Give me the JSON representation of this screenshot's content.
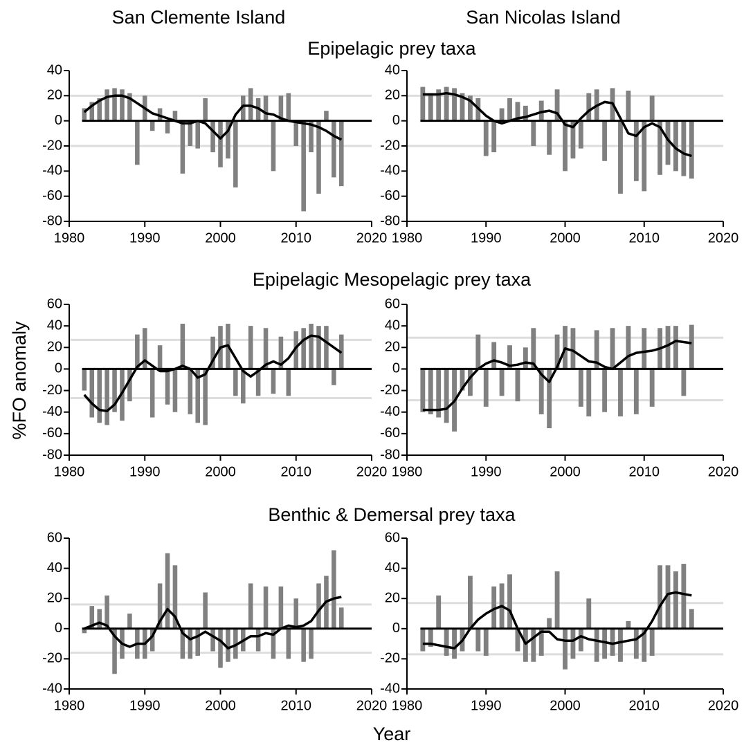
{
  "columns": [
    "San Clemente Island",
    "San Nicolas Island"
  ],
  "rows": [
    "Epipelagic prey taxa",
    "Epipelagic Mesopelagic prey taxa",
    "Benthic & Demersal prey taxa"
  ],
  "y_label": "%FO anomaly",
  "x_label": "Year",
  "chart_data": [
    {
      "type": "bar-line",
      "bar_color": "#808080",
      "line_color": "#000000",
      "x": [
        1982,
        1983,
        1984,
        1985,
        1986,
        1987,
        1988,
        1989,
        1990,
        1991,
        1992,
        1993,
        1994,
        1995,
        1996,
        1997,
        1998,
        1999,
        2000,
        2001,
        2002,
        2003,
        2004,
        2005,
        2006,
        2007,
        2008,
        2009,
        2010,
        2011,
        2012,
        2013,
        2014,
        2015,
        2016
      ],
      "values": [
        10,
        15,
        18,
        25,
        26,
        25,
        22,
        -35,
        20,
        -8,
        10,
        -10,
        8,
        -42,
        -20,
        -22,
        18,
        -25,
        -37,
        -30,
        -53,
        20,
        26,
        18,
        20,
        -40,
        20,
        22,
        -20,
        -72,
        -25,
        -58,
        8,
        -45,
        -52
      ],
      "smooth": [
        7,
        12,
        16,
        19,
        20,
        20,
        18,
        14,
        10,
        6,
        4,
        2,
        0,
        -2,
        -2,
        0,
        -2,
        -8,
        -14,
        -8,
        5,
        12,
        12,
        10,
        6,
        5,
        2,
        0,
        -1,
        -2,
        -3,
        -5,
        -8,
        -12,
        -15
      ],
      "reference_lines": [
        20,
        -20
      ],
      "xlim": [
        1980,
        2020
      ],
      "xticks": [
        1980,
        1990,
        2000,
        2010,
        2020
      ],
      "ylim": [
        -80,
        40
      ],
      "yticks": [
        -80,
        -60,
        -40,
        -20,
        0,
        20,
        40
      ]
    },
    {
      "type": "bar-line",
      "bar_color": "#808080",
      "line_color": "#000000",
      "x": [
        1982,
        1983,
        1984,
        1985,
        1986,
        1987,
        1988,
        1989,
        1990,
        1991,
        1992,
        1993,
        1994,
        1995,
        1996,
        1997,
        1998,
        1999,
        2000,
        2001,
        2002,
        2003,
        2004,
        2005,
        2006,
        2007,
        2008,
        2009,
        2010,
        2011,
        2012,
        2013,
        2014,
        2015,
        2016
      ],
      "values": [
        27,
        22,
        25,
        27,
        26,
        22,
        20,
        18,
        -28,
        -25,
        10,
        18,
        15,
        12,
        -20,
        16,
        -27,
        25,
        -40,
        -30,
        -22,
        22,
        25,
        -32,
        26,
        -58,
        24,
        -48,
        -56,
        20,
        -43,
        -35,
        -40,
        -44,
        -46
      ],
      "smooth": [
        21,
        21,
        21,
        22,
        21,
        19,
        16,
        10,
        4,
        0,
        -2,
        0,
        2,
        3,
        5,
        7,
        8,
        6,
        -3,
        -5,
        2,
        8,
        12,
        15,
        14,
        2,
        -10,
        -12,
        -5,
        -2,
        -5,
        -15,
        -22,
        -26,
        -28
      ],
      "reference_lines": [
        20,
        -20
      ],
      "xlim": [
        1980,
        2020
      ],
      "xticks": [
        1980,
        1990,
        2000,
        2010,
        2020
      ],
      "ylim": [
        -80,
        40
      ],
      "yticks": [
        -80,
        -60,
        -40,
        -20,
        0,
        20,
        40
      ]
    },
    {
      "type": "bar-line",
      "bar_color": "#808080",
      "line_color": "#000000",
      "x": [
        1982,
        1983,
        1984,
        1985,
        1986,
        1987,
        1988,
        1989,
        1990,
        1991,
        1992,
        1993,
        1994,
        1995,
        1996,
        1997,
        1998,
        1999,
        2000,
        2001,
        2002,
        2003,
        2004,
        2005,
        2006,
        2007,
        2008,
        2009,
        2010,
        2011,
        2012,
        2013,
        2014,
        2015,
        2016
      ],
      "values": [
        -20,
        -45,
        -50,
        -52,
        -40,
        -48,
        -30,
        32,
        38,
        -45,
        22,
        -33,
        -40,
        42,
        -42,
        -50,
        -52,
        30,
        40,
        42,
        -25,
        -32,
        40,
        -25,
        38,
        -23,
        30,
        -25,
        35,
        38,
        42,
        40,
        40,
        -15,
        32
      ],
      "smooth": [
        -24,
        -32,
        -38,
        -39,
        -33,
        -22,
        -10,
        2,
        8,
        3,
        -2,
        -2,
        0,
        3,
        0,
        -8,
        -5,
        8,
        20,
        22,
        10,
        -2,
        -7,
        -2,
        4,
        7,
        4,
        10,
        20,
        27,
        31,
        30,
        25,
        20,
        15
      ],
      "reference_lines": [
        27,
        -27
      ],
      "xlim": [
        1980,
        2020
      ],
      "xticks": [
        1980,
        1990,
        2000,
        2010,
        2020
      ],
      "ylim": [
        -80,
        60
      ],
      "yticks": [
        -80,
        -60,
        -40,
        -20,
        0,
        20,
        40,
        60
      ]
    },
    {
      "type": "bar-line",
      "bar_color": "#808080",
      "line_color": "#000000",
      "x": [
        1982,
        1983,
        1984,
        1985,
        1986,
        1987,
        1988,
        1989,
        1990,
        1991,
        1992,
        1993,
        1994,
        1995,
        1996,
        1997,
        1998,
        1999,
        2000,
        2001,
        2002,
        2003,
        2004,
        2005,
        2006,
        2007,
        2008,
        2009,
        2010,
        2011,
        2012,
        2013,
        2014,
        2015,
        2016
      ],
      "values": [
        -40,
        -42,
        -45,
        -50,
        -58,
        -20,
        -25,
        32,
        -35,
        25,
        -25,
        22,
        -30,
        20,
        38,
        -42,
        -55,
        32,
        40,
        38,
        -35,
        -44,
        36,
        -40,
        38,
        -44,
        40,
        -42,
        38,
        -35,
        38,
        40,
        40,
        -25,
        41
      ],
      "smooth": [
        -38,
        -38,
        -38,
        -37,
        -30,
        -18,
        -8,
        0,
        5,
        8,
        6,
        3,
        4,
        6,
        5,
        -5,
        -12,
        2,
        19,
        17,
        12,
        7,
        6,
        2,
        0,
        6,
        12,
        15,
        16,
        17,
        19,
        22,
        26,
        25,
        24
      ],
      "reference_lines": [
        29,
        -29
      ],
      "xlim": [
        1980,
        2020
      ],
      "xticks": [
        1980,
        1990,
        2000,
        2010,
        2020
      ],
      "ylim": [
        -80,
        60
      ],
      "yticks": [
        -80,
        -60,
        -40,
        -20,
        0,
        20,
        40,
        60
      ]
    },
    {
      "type": "bar-line",
      "bar_color": "#808080",
      "line_color": "#000000",
      "x": [
        1982,
        1983,
        1984,
        1985,
        1986,
        1987,
        1988,
        1989,
        1990,
        1991,
        1992,
        1993,
        1994,
        1995,
        1996,
        1997,
        1998,
        1999,
        2000,
        2001,
        2002,
        2003,
        2004,
        2005,
        2006,
        2007,
        2008,
        2009,
        2010,
        2011,
        2012,
        2013,
        2014,
        2015,
        2016
      ],
      "values": [
        -3,
        15,
        13,
        22,
        -30,
        -20,
        10,
        -20,
        -20,
        -15,
        30,
        50,
        42,
        -20,
        -20,
        -18,
        24,
        -15,
        -26,
        -22,
        -20,
        -15,
        30,
        -15,
        28,
        -20,
        28,
        -20,
        20,
        -22,
        -20,
        30,
        35,
        52,
        14
      ],
      "smooth": [
        0,
        2,
        4,
        2,
        -5,
        -10,
        -12,
        -10,
        -10,
        -5,
        5,
        13,
        8,
        -3,
        -7,
        -5,
        -2,
        -5,
        -8,
        -13,
        -11,
        -8,
        -5,
        -5,
        -3,
        -4,
        0,
        2,
        1,
        2,
        5,
        12,
        18,
        20,
        21
      ],
      "reference_lines": [
        16,
        -16
      ],
      "xlim": [
        1980,
        2020
      ],
      "xticks": [
        1980,
        1990,
        2000,
        2010,
        2020
      ],
      "ylim": [
        -40,
        60
      ],
      "yticks": [
        -40,
        -20,
        0,
        20,
        40,
        60
      ]
    },
    {
      "type": "bar-line",
      "bar_color": "#808080",
      "line_color": "#000000",
      "x": [
        1982,
        1983,
        1984,
        1985,
        1986,
        1987,
        1988,
        1989,
        1990,
        1991,
        1992,
        1993,
        1994,
        1995,
        1996,
        1997,
        1998,
        1999,
        2000,
        2001,
        2002,
        2003,
        2004,
        2005,
        2006,
        2007,
        2008,
        2009,
        2010,
        2011,
        2012,
        2013,
        2014,
        2015,
        2016
      ],
      "values": [
        -15,
        -12,
        22,
        -18,
        -20,
        -15,
        35,
        -15,
        -18,
        28,
        30,
        36,
        -15,
        -22,
        -22,
        -18,
        7,
        38,
        -27,
        -20,
        -15,
        20,
        -22,
        -20,
        -18,
        -22,
        5,
        -20,
        -22,
        -18,
        42,
        42,
        38,
        43,
        13
      ],
      "smooth": [
        -10,
        -10,
        -11,
        -12,
        -13,
        -8,
        0,
        6,
        10,
        13,
        15,
        12,
        0,
        -10,
        -6,
        -2,
        -2,
        -7,
        -8,
        -8,
        -5,
        -7,
        -8,
        -9,
        -10,
        -9,
        -8,
        -7,
        -3,
        5,
        15,
        23,
        24,
        23,
        22
      ],
      "reference_lines": [
        17,
        -17
      ],
      "xlim": [
        1980,
        2020
      ],
      "xticks": [
        1980,
        1990,
        2000,
        2010,
        2020
      ],
      "ylim": [
        -40,
        60
      ],
      "yticks": [
        -40,
        -20,
        0,
        20,
        40,
        60
      ]
    }
  ]
}
